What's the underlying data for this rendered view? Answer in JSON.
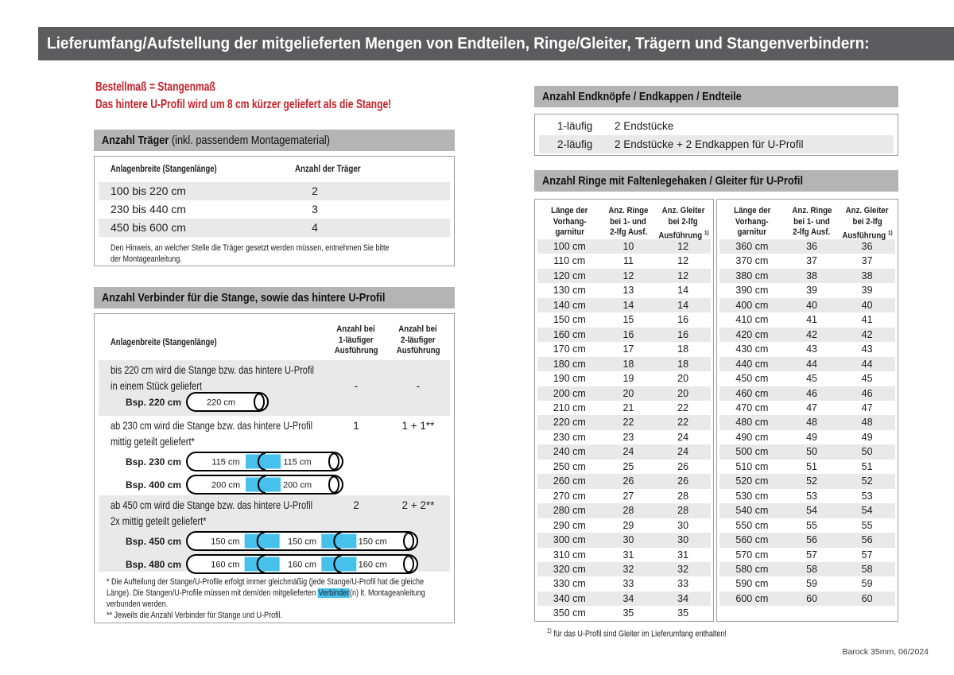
{
  "colors": {
    "topbar": "#5c5c5e",
    "section_header_bg": "#b4b4b4",
    "stripe": "#e9e9e9",
    "border": "#9b9b9b",
    "accent_red": "#c92127",
    "connector_blue": "#45c1ec"
  },
  "header": {
    "title": "Lieferumfang/Aufstellung der mitgelieferten Mengen von Endteilen, Ringe/Gleiter, Trägern und Stangenverbindern:"
  },
  "intro": {
    "line1": "Bestellmaß = Stangenmaß",
    "line2": "Das hintere U-Profil wird um 8 cm kürzer geliefert als die Stange!"
  },
  "traeger": {
    "title_bold": "Anzahl Träger",
    "title_rest": " (inkl. passendem Montagematerial)",
    "col1": "Anlagenbreite (Stangenlänge)",
    "col2": "Anzahl der Träger",
    "rows": [
      [
        "100 bis 220 cm",
        "2"
      ],
      [
        "230 bis 440 cm",
        "3"
      ],
      [
        "450 bis 600 cm",
        "4"
      ]
    ],
    "note1": "Den Hinweis, an welcher Stelle die Träger gesetzt werden müssen, entnehmen Sie bitte",
    "note2": "der Montageanleitung."
  },
  "verbinder": {
    "title": "Anzahl Verbinder für die Stange, sowie das hintere U-Profil",
    "col1": "Anlagenbreite (Stangenlänge)",
    "col2": [
      "Anzahl bei",
      "1-läufiger",
      "Ausführung"
    ],
    "col3": [
      "Anzahl bei",
      "2-läufiger",
      "Ausführung"
    ],
    "rows": [
      {
        "lines": [
          "bis 220 cm wird die Stange bzw. das hintere U-Profil",
          "in einem Stück geliefert"
        ],
        "v1": "-",
        "v2": "-",
        "diagrams": [
          {
            "label": "Bsp. 220 cm",
            "segments": [
              "220 cm"
            ]
          }
        ]
      },
      {
        "lines": [
          "ab 230 cm wird die Stange bzw. das hintere U-Profil",
          "mittig geteilt geliefert*"
        ],
        "v1": "1",
        "v2": "1 + 1**",
        "diagrams": [
          {
            "label": "Bsp. 230 cm",
            "segments": [
              "115 cm",
              "115 cm"
            ]
          },
          {
            "label": "Bsp. 400 cm",
            "segments": [
              "200 cm",
              "200 cm"
            ]
          }
        ]
      },
      {
        "lines": [
          "ab 450 cm wird die Stange bzw. das hintere U-Profil",
          "2x mittig geteilt geliefert*"
        ],
        "v1": "2",
        "v2": "2 + 2**",
        "diagrams": [
          {
            "label": "Bsp. 450 cm",
            "segments": [
              "150 cm",
              "150 cm",
              "150 cm"
            ]
          },
          {
            "label": "Bsp. 480 cm",
            "segments": [
              "160 cm",
              "160 cm",
              "160 cm"
            ]
          }
        ]
      }
    ],
    "fn1_l1": "* Die Aufteilung der Stange/U-Profile erfolgt immer gleichmäßig (jede Stange/U-Profil hat die gleiche",
    "fn1_l2_pre": "Länge). Die Stangen/U-Profile müssen mit dem/den mitgelieferten ",
    "fn1_l2_hl": "Verbinder",
    "fn1_l2_post": "(n) lt. Montageanleitung",
    "fn1_l3": "verbunden werden.",
    "fn2": "** Jeweils die Anzahl Verbinder für Stange und U-Profil."
  },
  "endknoepfe": {
    "title": "Anzahl Endknöpfe / Endkappen / Endteile",
    "rows": [
      [
        "1-läufig",
        "2 Endstücke"
      ],
      [
        "2-läufig",
        "2 Endstücke + 2 Endkappen für U-Profil"
      ]
    ]
  },
  "ringe": {
    "title": "Anzahl Ringe mit Faltenlegehaken / Gleiter für U-Profil",
    "header_cols": [
      [
        "Länge der",
        "Vorhang-",
        "garnitur"
      ],
      [
        "Anz. Ringe",
        "bei 1- und",
        "2-lfg Ausf."
      ],
      [
        "Anz. Gleiter",
        "bei 2-lfg",
        "Ausführung"
      ]
    ],
    "header_sup": "1)",
    "left_rows": [
      [
        "100 cm",
        "10",
        "12"
      ],
      [
        "110 cm",
        "11",
        "12"
      ],
      [
        "120 cm",
        "12",
        "12"
      ],
      [
        "130 cm",
        "13",
        "14"
      ],
      [
        "140 cm",
        "14",
        "14"
      ],
      [
        "150 cm",
        "15",
        "16"
      ],
      [
        "160 cm",
        "16",
        "16"
      ],
      [
        "170 cm",
        "17",
        "18"
      ],
      [
        "180 cm",
        "18",
        "18"
      ],
      [
        "190 cm",
        "19",
        "20"
      ],
      [
        "200 cm",
        "20",
        "20"
      ],
      [
        "210 cm",
        "21",
        "22"
      ],
      [
        "220 cm",
        "22",
        "22"
      ],
      [
        "230 cm",
        "23",
        "24"
      ],
      [
        "240 cm",
        "24",
        "24"
      ],
      [
        "250 cm",
        "25",
        "26"
      ],
      [
        "260 cm",
        "26",
        "26"
      ],
      [
        "270 cm",
        "27",
        "28"
      ],
      [
        "280 cm",
        "28",
        "28"
      ],
      [
        "290 cm",
        "29",
        "30"
      ],
      [
        "300 cm",
        "30",
        "30"
      ],
      [
        "310 cm",
        "31",
        "31"
      ],
      [
        "320 cm",
        "32",
        "32"
      ],
      [
        "330 cm",
        "33",
        "33"
      ],
      [
        "340 cm",
        "34",
        "34"
      ],
      [
        "350 cm",
        "35",
        "35"
      ]
    ],
    "right_rows": [
      [
        "360 cm",
        "36",
        "36"
      ],
      [
        "370 cm",
        "37",
        "37"
      ],
      [
        "380 cm",
        "38",
        "38"
      ],
      [
        "390 cm",
        "39",
        "39"
      ],
      [
        "400 cm",
        "40",
        "40"
      ],
      [
        "410 cm",
        "41",
        "41"
      ],
      [
        "420 cm",
        "42",
        "42"
      ],
      [
        "430 cm",
        "43",
        "43"
      ],
      [
        "440 cm",
        "44",
        "44"
      ],
      [
        "450 cm",
        "45",
        "45"
      ],
      [
        "460 cm",
        "46",
        "46"
      ],
      [
        "470 cm",
        "47",
        "47"
      ],
      [
        "480 cm",
        "48",
        "48"
      ],
      [
        "490 cm",
        "49",
        "49"
      ],
      [
        "500 cm",
        "50",
        "50"
      ],
      [
        "510 cm",
        "51",
        "51"
      ],
      [
        "520 cm",
        "52",
        "52"
      ],
      [
        "530 cm",
        "53",
        "53"
      ],
      [
        "540 cm",
        "54",
        "54"
      ],
      [
        "550 cm",
        "55",
        "55"
      ],
      [
        "560 cm",
        "56",
        "56"
      ],
      [
        "570 cm",
        "57",
        "57"
      ],
      [
        "580 cm",
        "58",
        "58"
      ],
      [
        "590 cm",
        "59",
        "59"
      ],
      [
        "600 cm",
        "60",
        "60"
      ]
    ],
    "fn_sup": "1)",
    "fn_text": "für das U-Profil sind Gleiter im Lieferumfang enthalten!"
  },
  "footer": {
    "doc_ref": "Barock 35mm, 06/2024"
  }
}
